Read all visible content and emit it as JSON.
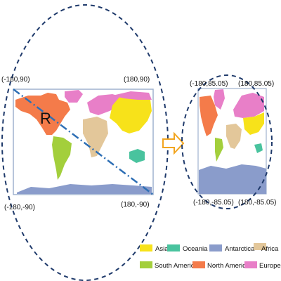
{
  "left_map": {
    "radius_label": "R",
    "corner_labels": {
      "top_left": "(-180,90)",
      "top_right": "(180,90)",
      "bottom_left": "(-180,-90)",
      "bottom_right": "(180,-90)"
    }
  },
  "right_map": {
    "corner_labels": {
      "top_left": "(-180,85.05)",
      "top_right": "(180,85.05)",
      "bottom_left": "(-180,-85.05)",
      "bottom_right": "(180,-85.05)"
    }
  },
  "legend": [
    {
      "label": "Asia",
      "color": "#f7e21a"
    },
    {
      "label": "Oceania",
      "color": "#49c39e"
    },
    {
      "label": "Antarctica",
      "color": "#8a9ccb"
    },
    {
      "label": "Africa",
      "color": "#e3c79a"
    },
    {
      "label": "South America",
      "color": "#a3cf3c"
    },
    {
      "label": "North America",
      "color": "#f47b4a"
    },
    {
      "label": "Europe",
      "color": "#e87fc8"
    }
  ],
  "colors": {
    "dashed_line": "#1f3a6b",
    "diagonal_line": "#2e6fb5",
    "arrow": "#f2a51f",
    "map_frame": "#9fb2cf"
  }
}
